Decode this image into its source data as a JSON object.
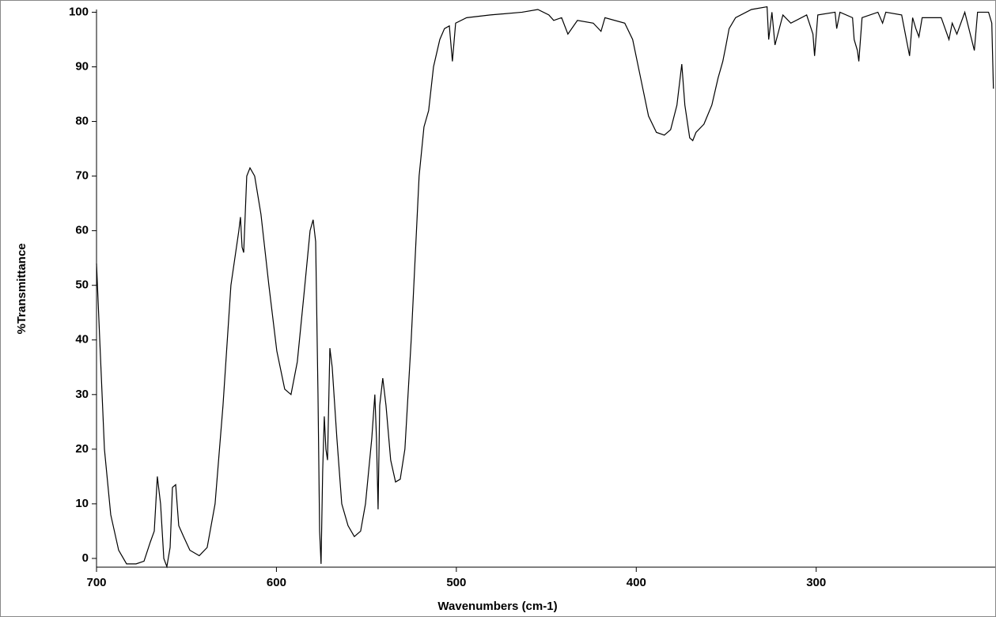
{
  "chart_data": {
    "type": "line",
    "xlabel": "Wavenumbers (cm-1)",
    "ylabel": "%Transmittance",
    "xlim": [
      700,
      200.5
    ],
    "ylim": [
      -1.6,
      100.5
    ],
    "xticks": [
      700,
      600,
      500,
      400,
      300
    ],
    "yticks": [
      0,
      10,
      20,
      30,
      40,
      50,
      60,
      70,
      80,
      90,
      100
    ],
    "series": [
      {
        "color": "#000000",
        "x": [
          700,
          698.2,
          695.6,
          692.1,
          687.7,
          683.3,
          678.0,
          673.6,
          670.1,
          667.9,
          666.2,
          664.4,
          662.6,
          660.9,
          659.1,
          657.8,
          656.0,
          654.3,
          651.6,
          648.1,
          642.9,
          638.5,
          634.1,
          629.7,
          625.3,
          620.9,
          620.0,
          619.1,
          618.2,
          616.5,
          614.7,
          612.1,
          608.6,
          604.2,
          599.8,
          595.4,
          591.9,
          588.4,
          584.8,
          581.3,
          579.6,
          578.2,
          576.9,
          576.0,
          575.2,
          574.3,
          573.4,
          572.5,
          571.6,
          570.3,
          569.0,
          566.4,
          563.7,
          560.2,
          556.7,
          553.2,
          550.5,
          547.0,
          545.3,
          544.4,
          543.5,
          542.6,
          540.9,
          539.1,
          536.5,
          533.8,
          531.2,
          528.6,
          525.1,
          520.7,
          518.0,
          515.4,
          512.7,
          509.2,
          506.6,
          503.9,
          502.2,
          500.4,
          494.3,
          481.1,
          463.5,
          454.7,
          448.6,
          445.9,
          441.5,
          438.0,
          432.7,
          423.9,
          419.6,
          417.4,
          406.4,
          402.0,
          397.6,
          393.2,
          388.8,
          384.4,
          380.9,
          377.4,
          374.7,
          373.0,
          370.3,
          368.6,
          366.8,
          362.4,
          358.0,
          354.5,
          351.9,
          350.1,
          348.4,
          344.8,
          336.0,
          327.3,
          326.4,
          324.6,
          322.9,
          318.5,
          314.1,
          305.3,
          301.8,
          300.9,
          299.1,
          289.5,
          288.6,
          286.8,
          279.8,
          278.9,
          277.1,
          276.3,
          274.5,
          265.7,
          263.1,
          261.3,
          252.5,
          248.1,
          246.4,
          244.6,
          242.9,
          241.1,
          230.5,
          226.2,
          224.4,
          221.8,
          217.4,
          212.1,
          210.3,
          204.2,
          202.4,
          201.5
        ],
        "values": [
          54,
          40,
          20,
          8,
          1.5,
          -1,
          -1,
          -0.5,
          3,
          5,
          15,
          10,
          0,
          -1.5,
          2,
          13,
          13.5,
          6,
          4,
          1.5,
          0.5,
          2,
          10,
          28,
          50,
          60,
          62.5,
          57,
          56,
          70,
          71.5,
          70,
          63,
          50,
          38,
          31,
          30,
          36,
          48,
          60,
          62,
          58,
          30,
          5,
          -1,
          16,
          26,
          20,
          18,
          38.5,
          35,
          22,
          10,
          6,
          4,
          5,
          10,
          22,
          30,
          22,
          9,
          28,
          33,
          28,
          18,
          14,
          14.5,
          20,
          40,
          70,
          79,
          82,
          90,
          95,
          97,
          97.5,
          91,
          98,
          99,
          99.5,
          100,
          100.5,
          99.5,
          98.5,
          99,
          96,
          98.5,
          98,
          96.5,
          99,
          98,
          95,
          88,
          81,
          78,
          77.5,
          78.5,
          83,
          90.5,
          83,
          77,
          76.5,
          78,
          79.5,
          83,
          88,
          91,
          94,
          97,
          99,
          100.5,
          101,
          95,
          100,
          94,
          99.5,
          98,
          99.5,
          96,
          92,
          99.5,
          100,
          97,
          100,
          99,
          95,
          93,
          91,
          99,
          100,
          98,
          100,
          99.5,
          92,
          99,
          97,
          95.5,
          99,
          99,
          95,
          98,
          96,
          100,
          93,
          100,
          100,
          98,
          86
        ]
      }
    ]
  }
}
